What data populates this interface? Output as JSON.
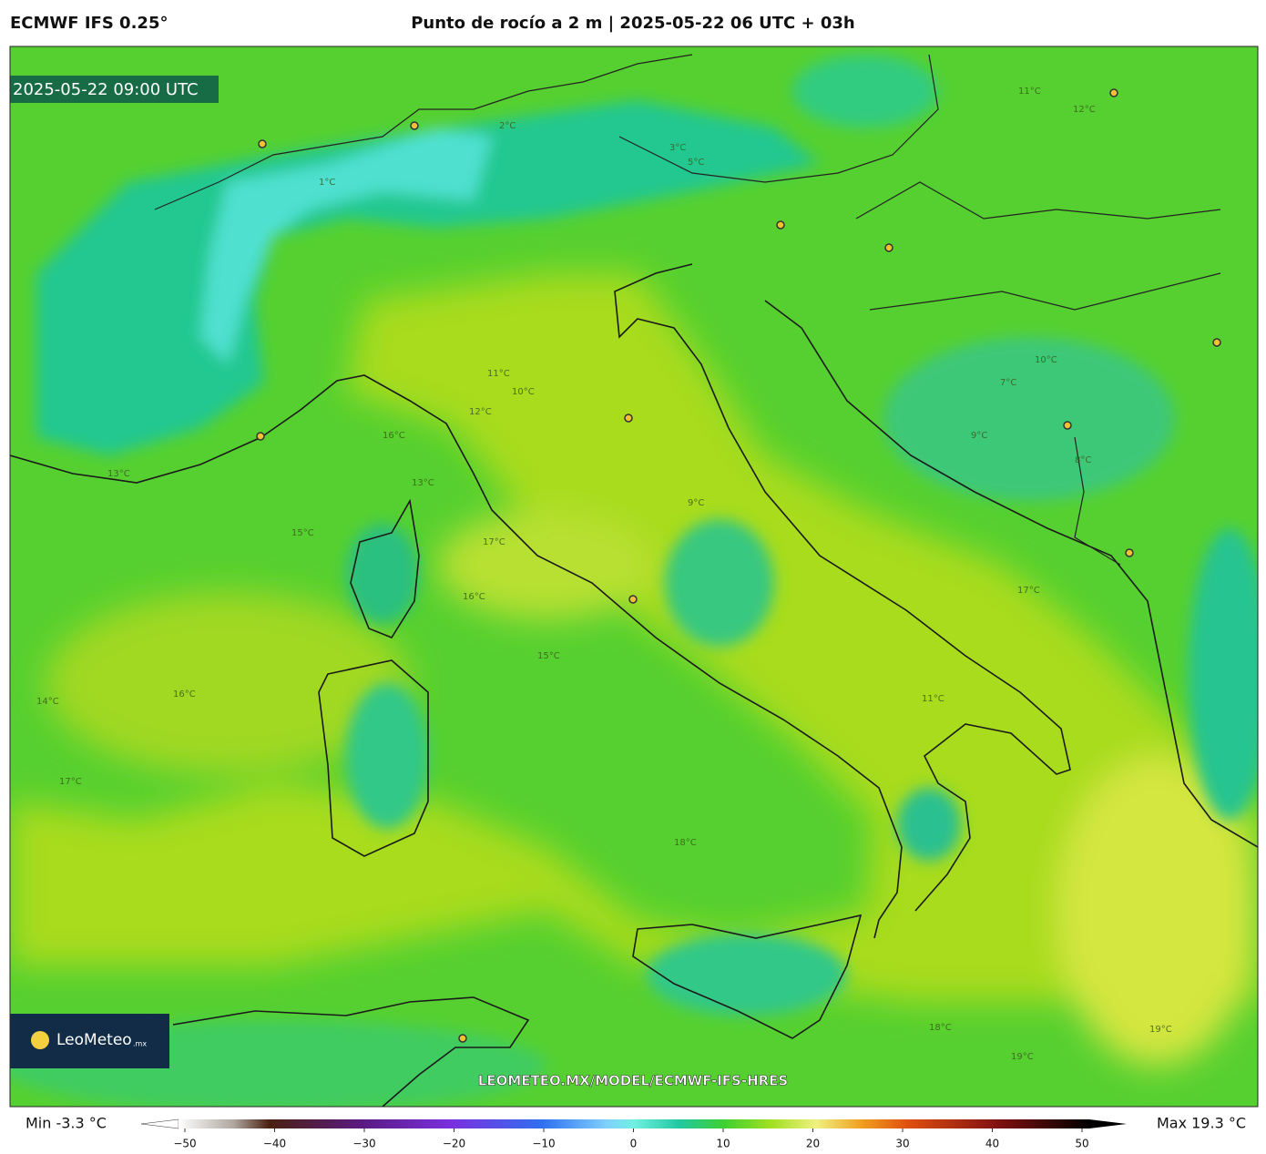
{
  "header": {
    "model": "ECMWF IFS 0.25°",
    "title": "Punto de rocío a 2 m | 2025-05-22 06 UTC + 03h"
  },
  "map": {
    "valid_time": "2025-05-22 09:00 UTC",
    "url": "LEOMETEO.MX/MODEL/ECMWF-IFS-HRES",
    "logo": {
      "name": "LeoMeteo",
      "suffix": ".mx"
    },
    "contour_labels": [
      "16°C",
      "11°C",
      "10°C",
      "12°C",
      "17°C",
      "15°C",
      "14°C",
      "13°C",
      "9°C",
      "8°C",
      "1°C",
      "2°C",
      "3°C",
      "5°C",
      "7°C",
      "18°C",
      "19°C",
      "16°C",
      "17°C",
      "11°C",
      "12°C",
      "10°C",
      "9°C",
      "17°C",
      "16°C",
      "15°C",
      "13°C",
      "11°C",
      "18°C",
      "19°C"
    ]
  },
  "colorbar": {
    "min": "Min -3.3 °C",
    "max": "Max 19.3 °C",
    "ticks": [
      {
        "value": -50,
        "label": "−50"
      },
      {
        "value": -40,
        "label": "−40"
      },
      {
        "value": -30,
        "label": "−30"
      },
      {
        "value": -20,
        "label": "−20"
      },
      {
        "value": -10,
        "label": "−10"
      },
      0,
      10,
      20,
      30,
      40,
      50
    ]
  }
}
